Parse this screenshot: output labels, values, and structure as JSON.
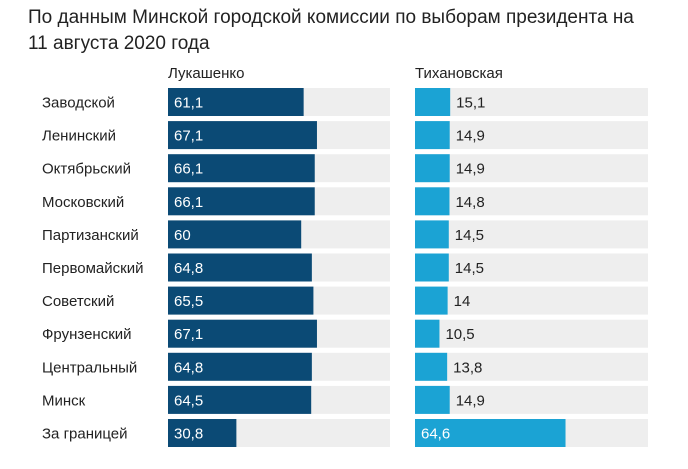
{
  "title_line1": "По данным Минской городской комиссии по выборам президента на",
  "title_line2": "11 августа 2020 года",
  "colors": {
    "dark_bar": "#0b4a75",
    "light_bar": "#1ba3d4",
    "track": "#eeeeee",
    "text": "#222222",
    "value_on_dark": "#ffffff"
  },
  "chart_data": {
    "type": "bar",
    "orientation": "horizontal",
    "title": "По данным Минской городской комиссии по выборам президента на 11 августа 2020 года",
    "categories": [
      "Заводской",
      "Ленинский",
      "Октябрьский",
      "Московский",
      "Партизанский",
      "Первомайский",
      "Советский",
      "Фрунзенский",
      "Центральный",
      "Минск",
      "За границей"
    ],
    "series": [
      {
        "name": "Лукашенко",
        "values": [
          61.1,
          67.1,
          66.1,
          66.1,
          60,
          64.8,
          65.5,
          67.1,
          64.8,
          64.5,
          30.8
        ],
        "labels": [
          "61,1",
          "67,1",
          "66,1",
          "66,1",
          "60",
          "64,8",
          "65,5",
          "67,1",
          "64,8",
          "64,5",
          "30,8"
        ]
      },
      {
        "name": "Тихановская",
        "values": [
          15.1,
          14.9,
          14.9,
          14.8,
          14.5,
          14.5,
          14,
          10.5,
          13.8,
          14.9,
          64.6
        ],
        "labels": [
          "15,1",
          "14,9",
          "14,9",
          "14,8",
          "14,5",
          "14,5",
          "14",
          "10,5",
          "13,8",
          "14,9",
          "64,6"
        ]
      }
    ],
    "xlim": [
      0,
      100
    ]
  }
}
